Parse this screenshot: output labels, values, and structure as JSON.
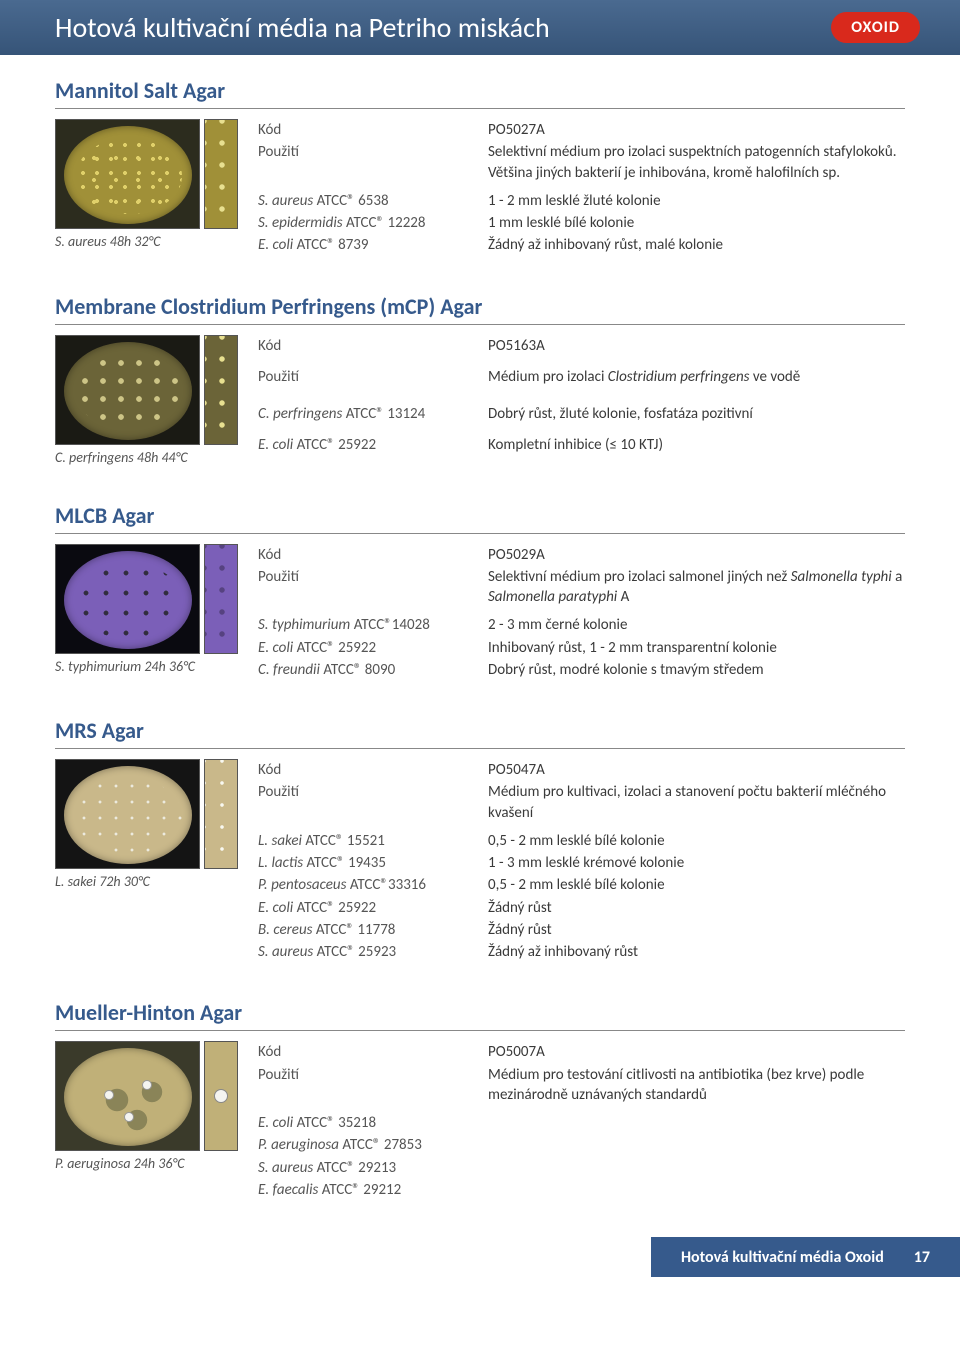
{
  "header": {
    "title": "Hotová kultivační média na Petriho miskách",
    "brand": "OXOID"
  },
  "colors": {
    "header_bg": "#3d5a80",
    "section_title": "#365a8c",
    "footer_bg": "#365a8c",
    "brand_bg": "#d9291c",
    "body_text": "#3a3a3a"
  },
  "labels": {
    "code": "Kód",
    "use": "Použití"
  },
  "entries": [
    {
      "title": "Mannitol Salt Agar",
      "caption_prefix": "S. aureus",
      "caption_cond": " 48h 32°C",
      "bg_class": "msa",
      "code": "PO5027A",
      "use": "Selektivní médium pro izolaci suspektních patogenních stafylokoků. Většina jiných bakterií je inhibována, kromě halofilních sp.",
      "rows": [
        {
          "l_i": "S. aureus",
          "l_n": " ATCC® 6538",
          "r": "1 - 2 mm lesklé žluté kolonie"
        },
        {
          "l_i": "S. epidermidis",
          "l_n": " ATCC® 12228",
          "r": "1 mm lesklé bílé kolonie"
        },
        {
          "l_i": "E. coli",
          "l_n": " ATCC® 8739",
          "r": "Žádný až inhibovaný růst, malé kolonie"
        }
      ]
    },
    {
      "title": "Membrane Clostridium Perfringens (mCP) Agar",
      "caption_prefix": "C. perfringens",
      "caption_cond": " 48h 44°C",
      "bg_class": "mcp",
      "code": "PO5163A",
      "use_html": "Médium pro izolaci <i>Clostridium perfringens</i> ve vodě",
      "rows": [
        {
          "l_i": "C. perfringens",
          "l_n": " ATCC® 13124",
          "r": "Dobrý růst, žluté kolonie, fosfatáza pozitivní"
        },
        {
          "l_i": "E. coli",
          "l_n": " ATCC® 25922",
          "r": "Kompletní inhibice (≤ 10 KTJ)"
        }
      ]
    },
    {
      "title": "MLCB Agar",
      "caption_prefix": "S. typhimurium",
      "caption_cond": " 24h 36°C",
      "bg_class": "mlcb",
      "code": "PO5029A",
      "use_html": "Selektivní médium pro izolaci salmonel jiných než <i>Salmonella typhi</i> a <i>Salmonella paratyphi</i> A",
      "rows": [
        {
          "l_i": "S. typhimurium",
          "l_n": " ATCC®14028",
          "r": "2 - 3 mm černé kolonie"
        },
        {
          "l_i": "E. coli",
          "l_n": " ATCC® 25922",
          "r": "Inhibovaný růst, 1 - 2 mm transparentní kolonie"
        },
        {
          "l_i": "C. freundii",
          "l_n": " ATCC® 8090",
          "r": "Dobrý růst, modré kolonie s tmavým středem"
        }
      ]
    },
    {
      "title": "MRS Agar",
      "caption_prefix": "L. sakei",
      "caption_cond": " 72h 30°C",
      "bg_class": "mrs",
      "code": "PO5047A",
      "use": "Médium pro kultivaci, izolaci a stanovení počtu bakterií mléčného kvašení",
      "rows": [
        {
          "l_i": "L. sakei",
          "l_n": " ATCC® 15521",
          "r": "0,5 - 2 mm lesklé bílé kolonie"
        },
        {
          "l_i": "L. lactis",
          "l_n": " ATCC® 19435",
          "r": "1 - 3 mm lesklé krémové kolonie"
        },
        {
          "l_i": "P. pentosaceus",
          "l_n": " ATCC®33316",
          "r": "0,5 - 2 mm lesklé bílé kolonie"
        },
        {
          "l_i": "E. coli",
          "l_n": " ATCC® 25922",
          "r": "Žádný růst"
        },
        {
          "l_i": "B. cereus",
          "l_n": " ATCC® 11778",
          "r": "Žádný růst"
        },
        {
          "l_i": "S. aureus",
          "l_n": " ATCC® 25923",
          "r": "Žádný až inhibovaný růst"
        }
      ]
    },
    {
      "title": "Mueller-Hinton Agar",
      "caption_prefix": "P. aeruginosa",
      "caption_cond": " 24h 36°C",
      "bg_class": "mh",
      "code": "PO5007A",
      "use": "Médium pro testování citlivosti na antibiotika (bez krve) podle mezinárodně uznávaných standardů",
      "rows": [
        {
          "l_i": "E. coli",
          "l_n": " ATCC® 35218",
          "r": ""
        },
        {
          "l_i": "P. aeruginosa",
          "l_n": " ATCC® 27853",
          "r": ""
        },
        {
          "l_i": "S. aureus",
          "l_n": " ATCC® 29213",
          "r": ""
        },
        {
          "l_i": "E. faecalis",
          "l_n": " ATCC® 29212",
          "r": ""
        }
      ]
    }
  ],
  "footer": {
    "text": "Hotová kultivační média Oxoid",
    "page": "17"
  }
}
